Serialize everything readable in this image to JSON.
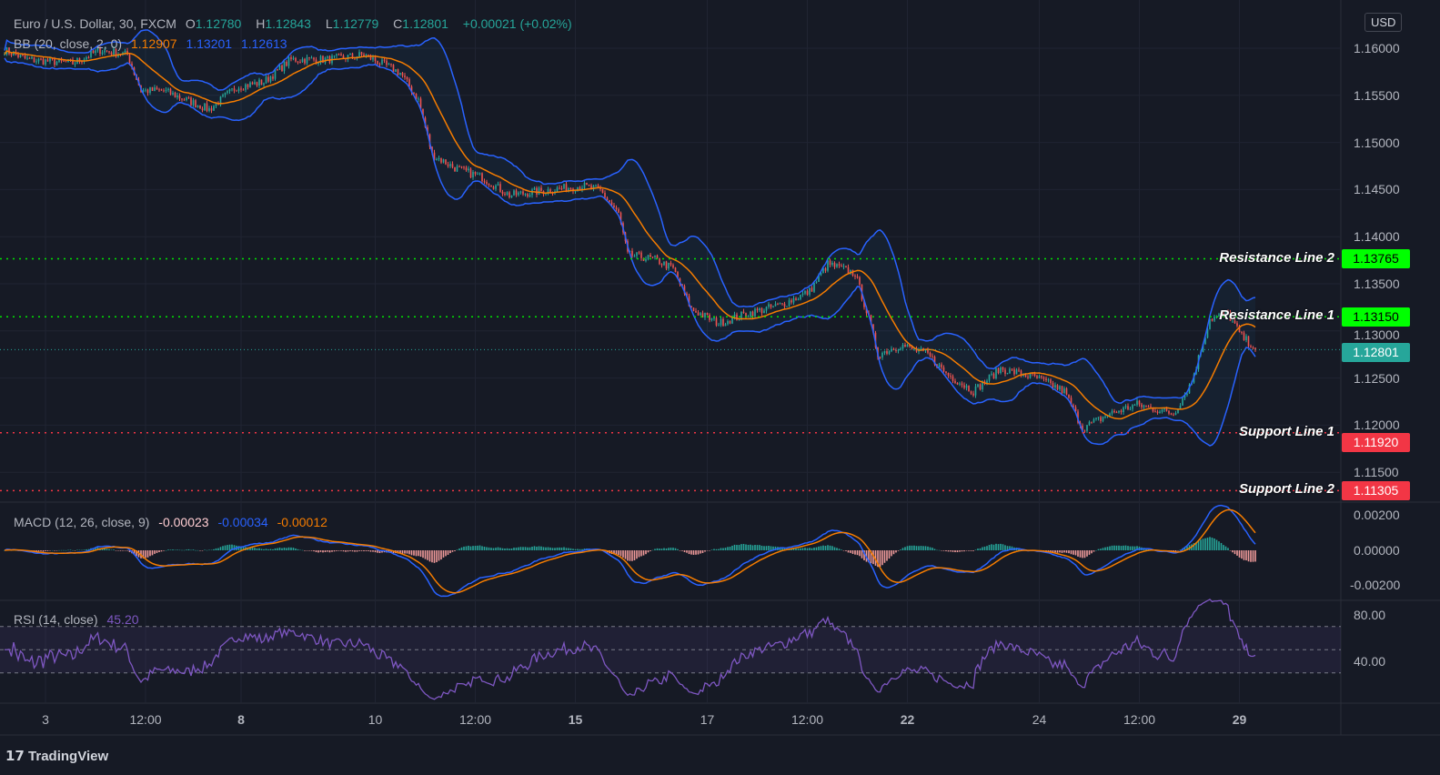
{
  "header": {
    "symbol": "Euro / U.S. Dollar, 30, FXCM",
    "o_label": "O",
    "o": "1.12780",
    "h_label": "H",
    "h": "1.12843",
    "l_label": "L",
    "l": "1.12779",
    "c_label": "C",
    "c": "1.12801",
    "change": "+0.00021 (+0.02%)"
  },
  "bb": {
    "label": "BB (20, close, 2, 0)",
    "basis": "1.12907",
    "upper": "1.13201",
    "lower": "1.12613"
  },
  "macd": {
    "label": "MACD (12, 26, close, 9)",
    "hist": "-0.00023",
    "macd": "-0.00034",
    "signal": "-0.00012"
  },
  "rsi": {
    "label": "RSI (14, close)",
    "value": "45.20"
  },
  "currency": "USD",
  "brand": "TradingView",
  "colors": {
    "up": "#26a69a",
    "down": "#ef5350",
    "basis": "#f57c00",
    "band": "#2962ff",
    "rsi": "#7e57c2",
    "resistance": "#00e600",
    "support": "#f23645"
  },
  "chart_data": {
    "type": "candlestick",
    "title": "Euro / U.S. Dollar, 30, FXCM",
    "ylim": [
      1.1125,
      1.162
    ],
    "price_ticks": [
      "1.16000",
      "1.15500",
      "1.15000",
      "1.14500",
      "1.14000",
      "1.13500",
      "1.13000",
      "1.12500",
      "1.12000",
      "1.11500"
    ],
    "price_tick_values": [
      1.16,
      1.155,
      1.15,
      1.145,
      1.14,
      1.135,
      1.13,
      1.125,
      1.12,
      1.115
    ],
    "time_ticks": [
      {
        "label": "3",
        "bar": 18
      },
      {
        "label": "12:00",
        "bar": 62
      },
      {
        "label": "8",
        "bar": 104
      },
      {
        "label": "10",
        "bar": 163
      },
      {
        "label": "12:00",
        "bar": 207
      },
      {
        "label": "15",
        "bar": 251
      },
      {
        "label": "17",
        "bar": 309
      },
      {
        "label": "12:00",
        "bar": 353
      },
      {
        "label": "22",
        "bar": 397
      },
      {
        "label": "24",
        "bar": 455
      },
      {
        "label": "12:00",
        "bar": 499
      },
      {
        "label": "29",
        "bar": 543
      }
    ],
    "close_path": [
      [
        0,
        1.1598
      ],
      [
        10,
        1.1588
      ],
      [
        30,
        1.1584
      ],
      [
        42,
        1.1598
      ],
      [
        54,
        1.1593
      ],
      [
        60,
        1.1555
      ],
      [
        70,
        1.1555
      ],
      [
        90,
        1.1535
      ],
      [
        102,
        1.1559
      ],
      [
        114,
        1.1564
      ],
      [
        126,
        1.1588
      ],
      [
        142,
        1.1588
      ],
      [
        158,
        1.1593
      ],
      [
        174,
        1.1574
      ],
      [
        182,
        1.1545
      ],
      [
        188,
        1.1487
      ],
      [
        198,
        1.1473
      ],
      [
        210,
        1.1463
      ],
      [
        222,
        1.1444
      ],
      [
        238,
        1.1449
      ],
      [
        254,
        1.1454
      ],
      [
        262,
        1.1449
      ],
      [
        270,
        1.1424
      ],
      [
        274,
        1.1381
      ],
      [
        286,
        1.1376
      ],
      [
        294,
        1.1366
      ],
      [
        302,
        1.1323
      ],
      [
        314,
        1.1308
      ],
      [
        326,
        1.1318
      ],
      [
        342,
        1.1328
      ],
      [
        354,
        1.1342
      ],
      [
        362,
        1.1371
      ],
      [
        374,
        1.1361
      ],
      [
        380,
        1.1313
      ],
      [
        384,
        1.1275
      ],
      [
        394,
        1.1285
      ],
      [
        406,
        1.1275
      ],
      [
        414,
        1.1255
      ],
      [
        426,
        1.1236
      ],
      [
        438,
        1.126
      ],
      [
        454,
        1.125
      ],
      [
        466,
        1.1236
      ],
      [
        474,
        1.1197
      ],
      [
        486,
        1.1212
      ],
      [
        498,
        1.1222
      ],
      [
        514,
        1.1212
      ],
      [
        522,
        1.1246
      ],
      [
        530,
        1.1313
      ],
      [
        538,
        1.1318
      ],
      [
        544,
        1.1294
      ],
      [
        550,
        1.1282
      ]
    ],
    "levels": [
      {
        "name": "Resistance Line 2",
        "price": 1.13765,
        "label": "1.13765",
        "kind": "resistance"
      },
      {
        "name": "Resistance Line 1",
        "price": 1.1315,
        "label": "1.13150",
        "kind": "resistance"
      },
      {
        "name": "Support Line 1",
        "price": 1.1192,
        "label": "1.11920",
        "kind": "support"
      },
      {
        "name": "Support Line 2",
        "price": 1.11305,
        "label": "1.11305",
        "kind": "support"
      }
    ],
    "last_price": {
      "value": 1.12801,
      "label": "1.12801"
    },
    "macd_ticks": [
      "0.00200",
      "0.00000",
      "-0.00200"
    ],
    "rsi_ticks": [
      "80.00",
      "40.00"
    ]
  }
}
